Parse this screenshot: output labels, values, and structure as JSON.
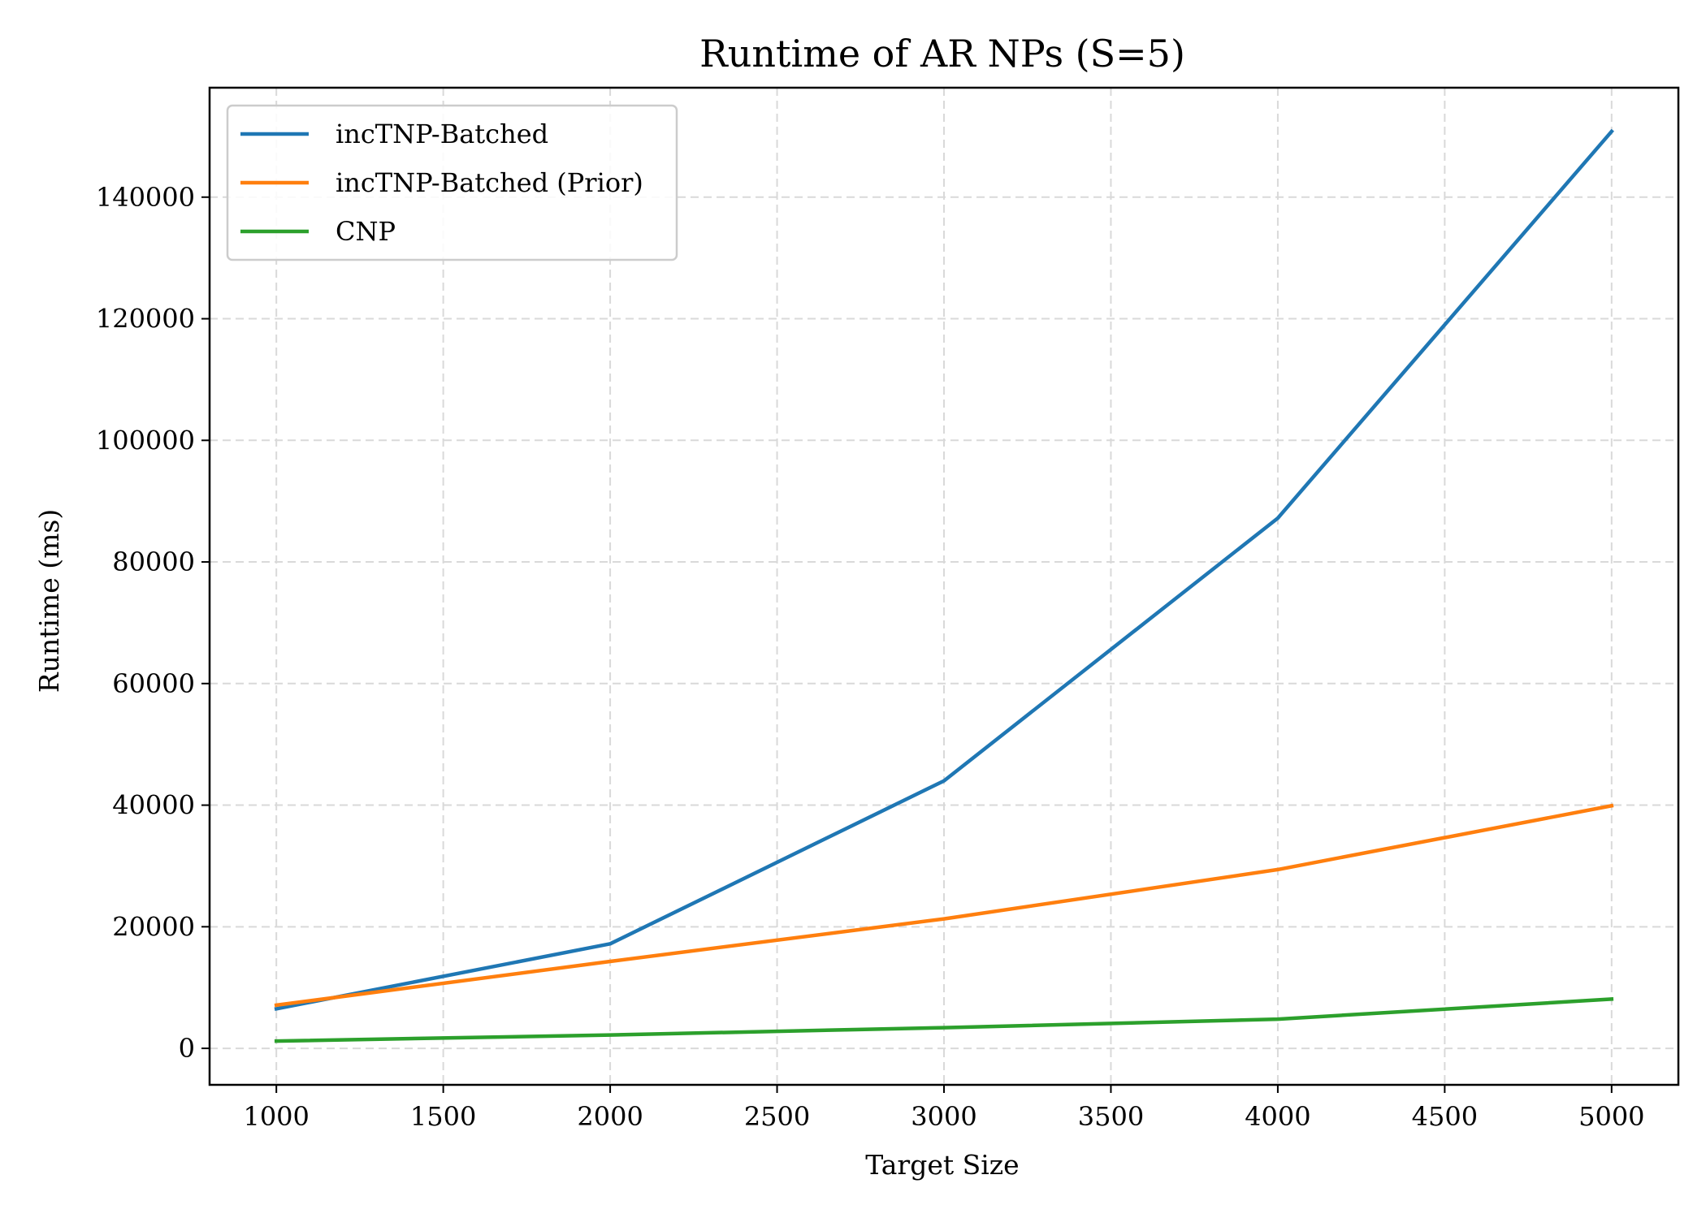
{
  "chart_data": {
    "type": "line",
    "title": "Runtime of AR NPs (S=5)",
    "xlabel": "Target Size",
    "ylabel": "Runtime (ms)",
    "x": [
      1000,
      2000,
      3000,
      4000,
      5000
    ],
    "xlim": [
      800,
      5200
    ],
    "ylim": [
      -6000,
      158000
    ],
    "xticks": [
      1000,
      1500,
      2000,
      2500,
      3000,
      3500,
      4000,
      4500,
      5000
    ],
    "xtick_labels": [
      "1000",
      "1500",
      "2000",
      "2500",
      "3000",
      "3500",
      "4000",
      "4500",
      "5000"
    ],
    "yticks": [
      0,
      20000,
      40000,
      60000,
      80000,
      100000,
      120000,
      140000
    ],
    "ytick_labels": [
      "0",
      "20000",
      "40000",
      "60000",
      "80000",
      "100000",
      "120000",
      "140000"
    ],
    "grid": true,
    "legend_position": "top-left",
    "series": [
      {
        "name": "incTNP-Batched",
        "color": "#1f77b4",
        "values": [
          6500,
          17200,
          44000,
          87200,
          150800
        ]
      },
      {
        "name": "incTNP-Batched (Prior)",
        "color": "#ff7f0e",
        "values": [
          7100,
          14300,
          21300,
          29400,
          39900
        ]
      },
      {
        "name": "CNP",
        "color": "#2ca02c",
        "values": [
          1200,
          2200,
          3400,
          4800,
          8100
        ]
      }
    ]
  }
}
